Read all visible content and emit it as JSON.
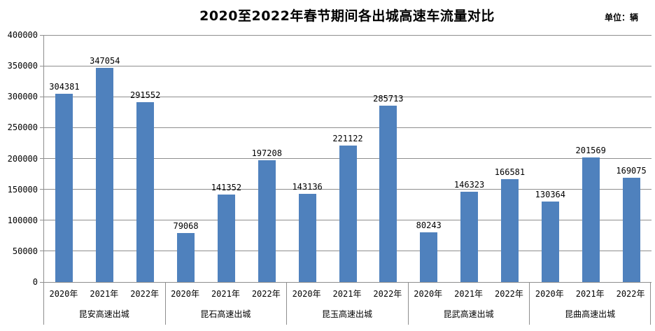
{
  "chart": {
    "title": "2020至2022年春节期间各出城高速车流量对比",
    "unit_label": "单位：辆"
  },
  "chart_data": {
    "type": "bar",
    "title": "2020至2022年春节期间各出城高速车流量对比",
    "unit": "单位：辆",
    "categories": [
      "2020年",
      "2021年",
      "2022年"
    ],
    "groups": [
      {
        "label": "昆安高速出城",
        "values": [
          304381,
          347054,
          291552
        ]
      },
      {
        "label": "昆石高速出城",
        "values": [
          79068,
          141352,
          197208
        ]
      },
      {
        "label": "昆玉高速出城",
        "values": [
          143136,
          221122,
          285713
        ]
      },
      {
        "label": "昆武高速出城",
        "values": [
          80243,
          146323,
          166581
        ]
      },
      {
        "label": "昆曲高速出城",
        "values": [
          130364,
          201569,
          169075
        ]
      }
    ],
    "ylim": [
      0,
      400000
    ],
    "ytick_step": 50000,
    "ytick_labels": [
      "0",
      "50000",
      "100000",
      "150000",
      "200000",
      "250000",
      "300000",
      "350000",
      "400000"
    ],
    "grid": true,
    "legend_position": "none",
    "data_labels": true,
    "colors": {
      "bar": "#4F81BD",
      "gridline": "#8E8E8E",
      "axis": "#8E8E8E",
      "text": "#000000",
      "background": "#FFFFFF"
    }
  }
}
